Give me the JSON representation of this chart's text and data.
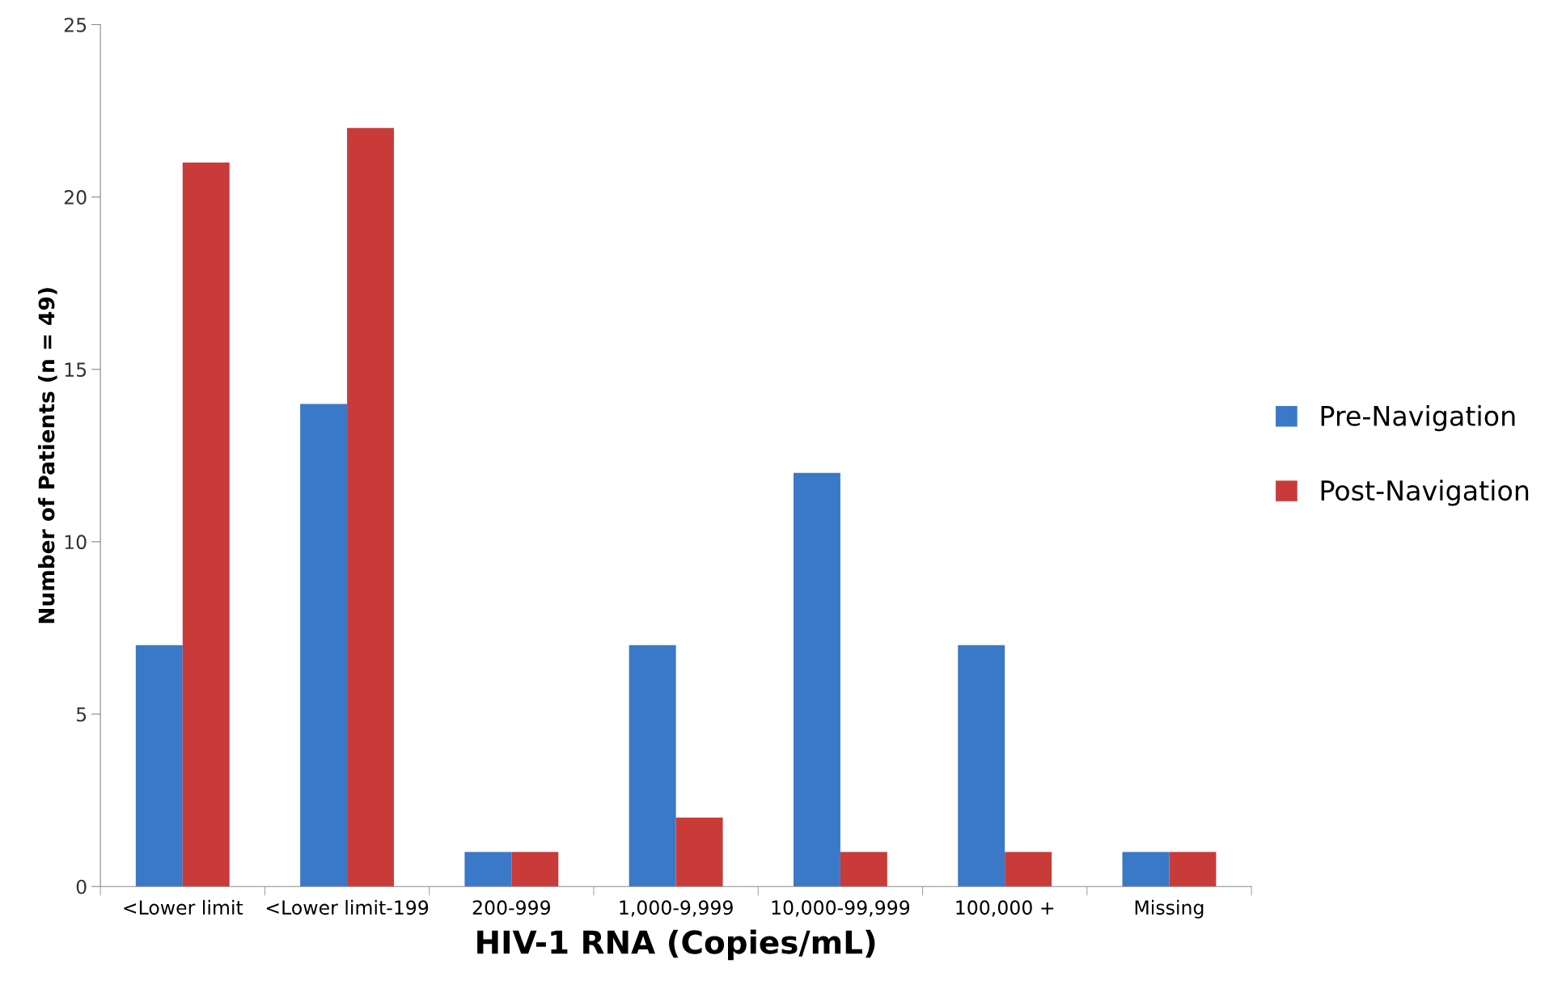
{
  "chart_data": {
    "type": "bar",
    "xlabel": "HIV-1 RNA (Copies/mL)",
    "ylabel": "Number of Patients (n = 49)",
    "categories": [
      "<Lower limit",
      "<Lower limit-199",
      "200-999",
      "1,000-9,999",
      "10,000-99,999",
      "100,000 +",
      "Missing"
    ],
    "series": [
      {
        "name": "Pre-Navigation",
        "color": "#3a78c8",
        "values": [
          7,
          14,
          1,
          7,
          12,
          7,
          1
        ]
      },
      {
        "name": "Post-Navigation",
        "color": "#c83b39",
        "values": [
          21,
          22,
          1,
          2,
          1,
          1,
          1
        ]
      }
    ],
    "ylim": [
      0,
      25
    ],
    "yticks": [
      0,
      5,
      10,
      15,
      20,
      25
    ],
    "grid": false,
    "legend": "right"
  }
}
